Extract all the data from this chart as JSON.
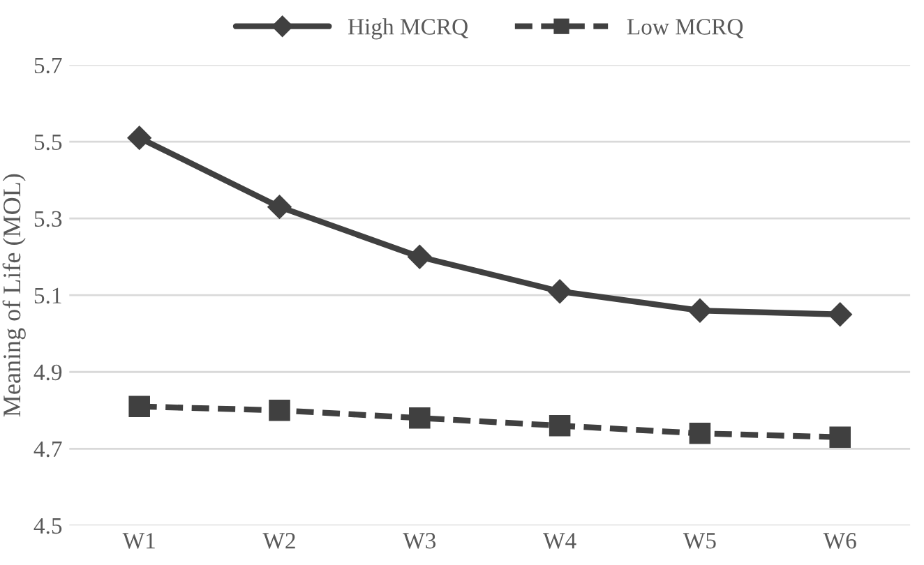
{
  "chart_data": {
    "type": "line",
    "ylabel": "Meaning of Life (MOL)",
    "categories": [
      "W1",
      "W2",
      "W3",
      "W4",
      "W5",
      "W6"
    ],
    "series": [
      {
        "name": "High MCRQ",
        "color": "#404040",
        "marker": "diamond",
        "line_style": "solid",
        "values": [
          5.51,
          5.33,
          5.2,
          5.11,
          5.06,
          5.05
        ]
      },
      {
        "name": "Low MCRQ",
        "color": "#404040",
        "marker": "square",
        "line_style": "dashed",
        "values": [
          4.81,
          4.8,
          4.78,
          4.76,
          4.74,
          4.73
        ]
      }
    ],
    "ylim": [
      4.5,
      5.7
    ],
    "yticks": [
      {
        "value": 4.5,
        "label": "4.5"
      },
      {
        "value": 4.7,
        "label": "4.7"
      },
      {
        "value": 4.9,
        "label": "4.9"
      },
      {
        "value": 5.1,
        "label": "5.1"
      },
      {
        "value": 5.3,
        "label": "5.3"
      },
      {
        "value": 5.5,
        "label": "5.5"
      },
      {
        "value": 5.7,
        "label": "5.7"
      }
    ],
    "grid": "y",
    "legend": "top"
  }
}
